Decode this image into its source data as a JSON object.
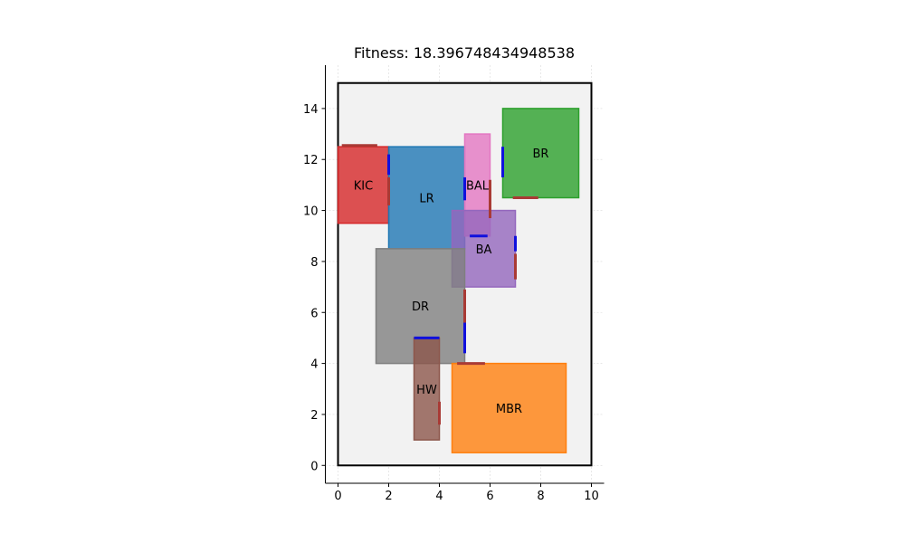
{
  "title": "Fitness: 18.396748434948538",
  "chart_data": {
    "type": "floorplan",
    "title": "Fitness: 18.396748434948538",
    "xlabel": "",
    "ylabel": "",
    "xlim": [
      -0.5,
      10.5
    ],
    "ylim": [
      -0.7,
      15.7
    ],
    "grid": true,
    "x_ticks": [
      0,
      2,
      4,
      6,
      8,
      10
    ],
    "y_ticks": [
      0,
      2,
      4,
      6,
      8,
      10,
      12,
      14
    ],
    "boundary": {
      "x": 0,
      "y": 0,
      "w": 10,
      "h": 15
    },
    "rooms": [
      {
        "name": "KIC",
        "x": 0.0,
        "y": 9.5,
        "w": 2.0,
        "h": 3.0,
        "color": "#d62728"
      },
      {
        "name": "LR",
        "x": 2.0,
        "y": 8.5,
        "w": 3.0,
        "h": 4.0,
        "color": "#1f77b4"
      },
      {
        "name": "BAL",
        "x": 5.0,
        "y": 9.0,
        "w": 1.0,
        "h": 4.0,
        "color": "#e377c2"
      },
      {
        "name": "BR",
        "x": 6.5,
        "y": 10.5,
        "w": 3.0,
        "h": 3.5,
        "color": "#2ca02c"
      },
      {
        "name": "BA",
        "x": 4.5,
        "y": 7.0,
        "w": 2.5,
        "h": 3.0,
        "color": "#9467bd"
      },
      {
        "name": "DR",
        "x": 1.5,
        "y": 4.0,
        "w": 3.5,
        "h": 4.5,
        "color": "#7f7f7f"
      },
      {
        "name": "HW",
        "x": 3.0,
        "y": 1.0,
        "w": 1.0,
        "h": 4.0,
        "color": "#8c564b"
      },
      {
        "name": "MBR",
        "x": 4.5,
        "y": 0.5,
        "w": 4.5,
        "h": 3.5,
        "color": "#ff7f0e"
      }
    ],
    "door_markers": [
      {
        "x1": 0.15,
        "y1": 12.55,
        "x2": 1.55,
        "y2": 12.55,
        "color": "#a93a35"
      },
      {
        "x1": 2.0,
        "y1": 11.4,
        "x2": 2.0,
        "y2": 12.2,
        "color": "#1010dd"
      },
      {
        "x1": 2.0,
        "y1": 10.2,
        "x2": 2.0,
        "y2": 11.3,
        "color": "#a93a35"
      },
      {
        "x1": 5.0,
        "y1": 10.4,
        "x2": 5.0,
        "y2": 11.3,
        "color": "#1010dd"
      },
      {
        "x1": 6.0,
        "y1": 9.7,
        "x2": 6.0,
        "y2": 11.2,
        "color": "#a93a35"
      },
      {
        "x1": 6.5,
        "y1": 11.3,
        "x2": 6.5,
        "y2": 12.5,
        "color": "#1010dd"
      },
      {
        "x1": 6.9,
        "y1": 10.5,
        "x2": 7.9,
        "y2": 10.5,
        "color": "#a93a35"
      },
      {
        "x1": 5.2,
        "y1": 9.0,
        "x2": 5.9,
        "y2": 9.0,
        "color": "#1010dd"
      },
      {
        "x1": 7.0,
        "y1": 8.4,
        "x2": 7.0,
        "y2": 9.0,
        "color": "#1010dd"
      },
      {
        "x1": 7.0,
        "y1": 7.3,
        "x2": 7.0,
        "y2": 8.3,
        "color": "#a93a35"
      },
      {
        "x1": 5.0,
        "y1": 5.6,
        "x2": 5.0,
        "y2": 6.9,
        "color": "#a93a35"
      },
      {
        "x1": 5.0,
        "y1": 4.4,
        "x2": 5.0,
        "y2": 5.6,
        "color": "#1010dd"
      },
      {
        "x1": 3.0,
        "y1": 5.0,
        "x2": 4.0,
        "y2": 5.0,
        "color": "#1010dd"
      },
      {
        "x1": 4.7,
        "y1": 4.0,
        "x2": 5.8,
        "y2": 4.0,
        "color": "#a93a35"
      },
      {
        "x1": 4.0,
        "y1": 1.6,
        "x2": 4.0,
        "y2": 2.5,
        "color": "#a93a35"
      }
    ]
  }
}
